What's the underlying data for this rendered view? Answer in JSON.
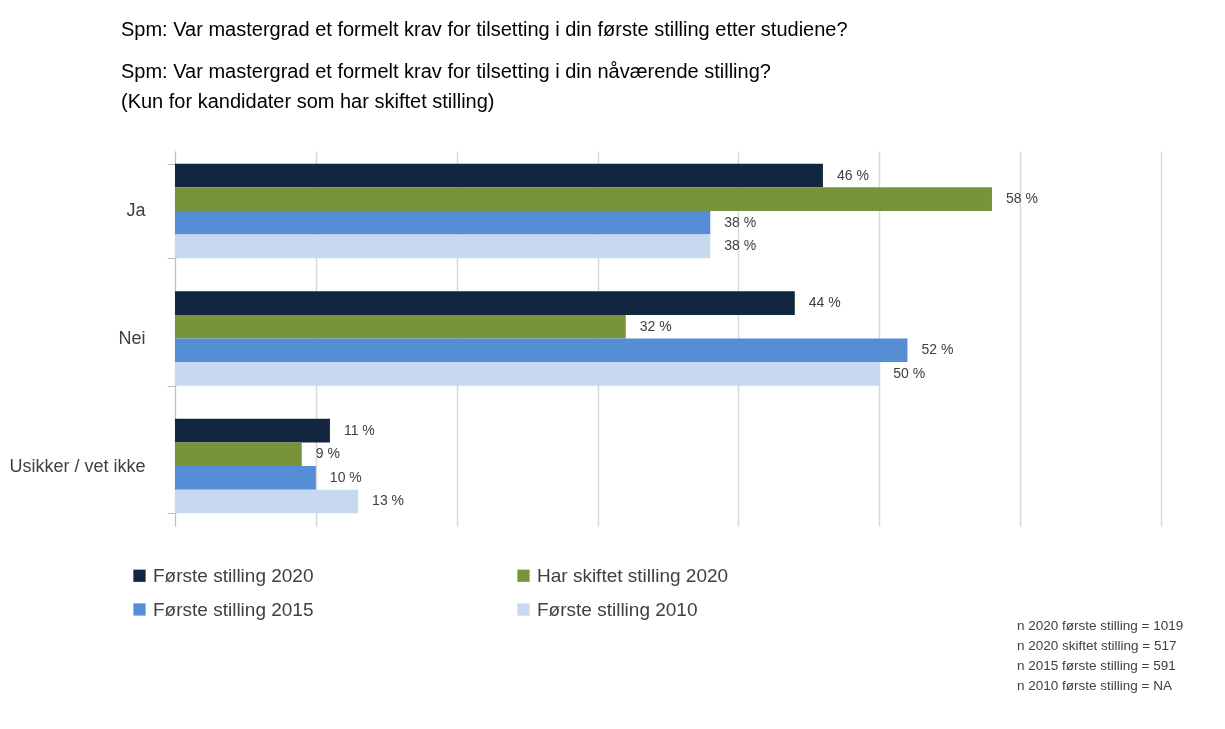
{
  "chart_data": {
    "type": "bar",
    "orientation": "horizontal",
    "title": "Spm: Var mastergrad et formelt krav for tilsetting i din første stilling etter studiene?",
    "subtitle": "Spm: Var mastergrad et formelt krav for tilsetting i din nåværende stilling? (Kun for kandidater som har skiftet stilling)",
    "categories": [
      "Ja",
      "Nei",
      "Usikker / vet ikke"
    ],
    "series": [
      {
        "name": "Første stilling 2020",
        "color": "#12263f",
        "values": [
          46,
          44,
          11
        ],
        "value_labels": [
          "46 %",
          "44 %",
          "11 %"
        ]
      },
      {
        "name": "Har skiftet stilling 2020",
        "color": "#77933c",
        "values": [
          58,
          32,
          9
        ],
        "value_labels": [
          "58 %",
          "32 %",
          "9 %"
        ]
      },
      {
        "name": "Første stilling 2015",
        "color": "#558ed5",
        "values": [
          38,
          52,
          10
        ],
        "value_labels": [
          "38 %",
          "52 %",
          "10 %"
        ]
      },
      {
        "name": "Første stilling 2010",
        "color": "#c6d9f1",
        "values": [
          38,
          50,
          13
        ],
        "value_labels": [
          "38 %",
          "50 %",
          "13 %"
        ]
      }
    ],
    "xlim": [
      0,
      70
    ],
    "xticks": [
      {
        "value": 0,
        "label": null
      },
      {
        "value": 10,
        "label": null
      },
      {
        "value": 20,
        "label": null
      },
      {
        "value": 30,
        "label": null
      },
      {
        "value": 40,
        "label": null
      },
      {
        "value": 50,
        "label": null
      },
      {
        "value": 60,
        "label": null
      },
      {
        "value": 70,
        "label": null
      }
    ],
    "grid": "x",
    "legend": "bottom",
    "tick_labels": "y",
    "annotations": [
      "n 2020 første stilling = 1019",
      "n 2020 skiftet stilling = 517",
      "n 2015 første stilling = 591",
      "n 2010 første stilling = NA"
    ]
  }
}
